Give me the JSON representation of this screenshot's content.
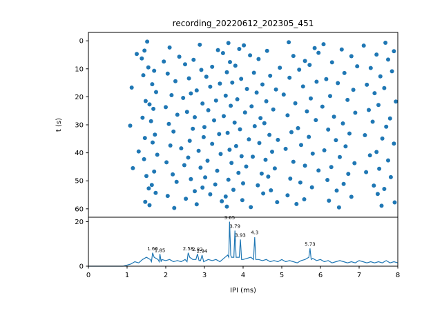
{
  "title": "recording_20220612_202305_451",
  "colors": {
    "accent": "#1f77b4",
    "axis": "#000000",
    "background": "#ffffff"
  },
  "chart_data": [
    {
      "type": "scatter",
      "title": "recording_20220612_202305_451",
      "xlabel": "IPI (ms)",
      "ylabel": "t (s)",
      "xlim": [
        0,
        8
      ],
      "ylim": [
        63,
        -3
      ],
      "ylim_inverted": true,
      "yticks": [
        0,
        10,
        20,
        30,
        40,
        50,
        60
      ],
      "points": [
        [
          1.52,
          0.3
        ],
        [
          2.88,
          1.4
        ],
        [
          3.62,
          0.8
        ],
        [
          4.02,
          1.6
        ],
        [
          5.18,
          0.5
        ],
        [
          6.08,
          1.2
        ],
        [
          7.12,
          1.7
        ],
        [
          7.68,
          0.7
        ],
        [
          1.45,
          3.5
        ],
        [
          2.1,
          2.4
        ],
        [
          3.35,
          3.3
        ],
        [
          3.9,
          2.9
        ],
        [
          4.62,
          3.6
        ],
        [
          5.85,
          2.6
        ],
        [
          6.55,
          3.1
        ],
        [
          7.9,
          3.7
        ],
        [
          1.25,
          4.7
        ],
        [
          2.35,
          5.7
        ],
        [
          3.48,
          4.4
        ],
        [
          4.18,
          5.2
        ],
        [
          5.3,
          5.4
        ],
        [
          5.95,
          4.3
        ],
        [
          6.8,
          5.5
        ],
        [
          7.45,
          4.9
        ],
        [
          1.38,
          6.3
        ],
        [
          1.95,
          7.4
        ],
        [
          2.72,
          6.8
        ],
        [
          3.66,
          7.6
        ],
        [
          4.4,
          6.5
        ],
        [
          5.6,
          7.2
        ],
        [
          6.3,
          7.7
        ],
        [
          7.75,
          6.7
        ],
        [
          1.55,
          9.5
        ],
        [
          2.5,
          8.4
        ],
        [
          3.2,
          9.3
        ],
        [
          3.8,
          8.9
        ],
        [
          4.95,
          9.6
        ],
        [
          5.72,
          8.6
        ],
        [
          6.95,
          9.1
        ],
        [
          7.3,
          9.7
        ],
        [
          1.7,
          10.7
        ],
        [
          2.05,
          11.7
        ],
        [
          2.92,
          10.4
        ],
        [
          3.58,
          11.2
        ],
        [
          4.28,
          11.4
        ],
        [
          5.45,
          10.3
        ],
        [
          6.62,
          11.5
        ],
        [
          7.85,
          10.9
        ],
        [
          1.42,
          12.3
        ],
        [
          2.6,
          13.4
        ],
        [
          3.05,
          12.8
        ],
        [
          3.95,
          13.6
        ],
        [
          4.7,
          12.5
        ],
        [
          5.2,
          13.2
        ],
        [
          6.15,
          13.7
        ],
        [
          7.55,
          12.7
        ],
        [
          1.65,
          15.5
        ],
        [
          2.25,
          14.4
        ],
        [
          3.4,
          15.3
        ],
        [
          3.72,
          14.9
        ],
        [
          4.5,
          15.6
        ],
        [
          5.9,
          14.6
        ],
        [
          6.45,
          15.1
        ],
        [
          7.2,
          15.7
        ],
        [
          1.12,
          16.7
        ],
        [
          2.8,
          17.7
        ],
        [
          3.15,
          16.4
        ],
        [
          4.1,
          17.2
        ],
        [
          4.85,
          17.4
        ],
        [
          5.55,
          16.3
        ],
        [
          6.85,
          17.5
        ],
        [
          7.65,
          16.9
        ],
        [
          1.75,
          18.3
        ],
        [
          2.15,
          19.4
        ],
        [
          2.65,
          18.8
        ],
        [
          3.55,
          19.6
        ],
        [
          4.35,
          18.5
        ],
        [
          5.05,
          19.2
        ],
        [
          6.25,
          19.7
        ],
        [
          7.4,
          18.7
        ],
        [
          1.48,
          21.5
        ],
        [
          2.45,
          20.4
        ],
        [
          3.3,
          21.3
        ],
        [
          3.85,
          20.9
        ],
        [
          4.6,
          21.6
        ],
        [
          5.75,
          20.6
        ],
        [
          6.7,
          21.1
        ],
        [
          7.95,
          21.7
        ],
        [
          1.58,
          22.7
        ],
        [
          2.0,
          23.7
        ],
        [
          2.95,
          22.4
        ],
        [
          3.68,
          23.2
        ],
        [
          4.22,
          23.4
        ],
        [
          5.35,
          22.3
        ],
        [
          6.05,
          23.5
        ],
        [
          7.5,
          22.9
        ],
        [
          1.68,
          24.3
        ],
        [
          2.55,
          25.4
        ],
        [
          3.1,
          24.8
        ],
        [
          4.05,
          25.6
        ],
        [
          4.78,
          24.5
        ],
        [
          5.65,
          25.2
        ],
        [
          6.9,
          25.7
        ],
        [
          7.25,
          24.7
        ],
        [
          1.4,
          27.5
        ],
        [
          2.3,
          26.4
        ],
        [
          2.75,
          27.3
        ],
        [
          3.5,
          26.9
        ],
        [
          4.45,
          27.6
        ],
        [
          5.15,
          26.6
        ],
        [
          6.35,
          27.1
        ],
        [
          7.8,
          27.7
        ],
        [
          1.62,
          28.7
        ],
        [
          2.08,
          29.7
        ],
        [
          3.25,
          28.4
        ],
        [
          3.78,
          29.2
        ],
        [
          4.55,
          29.4
        ],
        [
          5.88,
          28.3
        ],
        [
          6.58,
          29.5
        ],
        [
          7.35,
          28.9
        ],
        [
          1.08,
          30.3
        ],
        [
          2.7,
          31.4
        ],
        [
          3.0,
          30.8
        ],
        [
          3.92,
          31.6
        ],
        [
          4.3,
          30.5
        ],
        [
          5.42,
          31.2
        ],
        [
          6.2,
          31.7
        ],
        [
          7.7,
          30.7
        ],
        [
          1.72,
          33.5
        ],
        [
          2.2,
          32.4
        ],
        [
          3.38,
          33.3
        ],
        [
          3.6,
          32.9
        ],
        [
          4.68,
          33.6
        ],
        [
          5.25,
          32.6
        ],
        [
          6.75,
          33.1
        ],
        [
          7.15,
          33.7
        ],
        [
          1.46,
          34.7
        ],
        [
          2.62,
          35.7
        ],
        [
          2.98,
          34.4
        ],
        [
          4.15,
          35.2
        ],
        [
          4.9,
          35.4
        ],
        [
          5.7,
          34.3
        ],
        [
          6.4,
          35.5
        ],
        [
          7.6,
          34.9
        ],
        [
          1.66,
          36.3
        ],
        [
          2.12,
          37.4
        ],
        [
          3.2,
          36.8
        ],
        [
          3.82,
          37.6
        ],
        [
          4.42,
          36.5
        ],
        [
          5.5,
          37.2
        ],
        [
          6.65,
          37.7
        ],
        [
          7.9,
          36.7
        ],
        [
          1.3,
          39.5
        ],
        [
          2.4,
          38.4
        ],
        [
          2.85,
          39.3
        ],
        [
          3.65,
          38.9
        ],
        [
          4.75,
          39.6
        ],
        [
          5.1,
          38.6
        ],
        [
          6.1,
          39.1
        ],
        [
          7.45,
          39.7
        ],
        [
          1.78,
          40.7
        ],
        [
          2.58,
          41.7
        ],
        [
          3.42,
          40.4
        ],
        [
          3.96,
          41.2
        ],
        [
          4.25,
          41.4
        ],
        [
          5.8,
          40.3
        ],
        [
          6.5,
          41.5
        ],
        [
          7.28,
          40.9
        ],
        [
          1.44,
          42.3
        ],
        [
          2.02,
          43.4
        ],
        [
          3.08,
          42.8
        ],
        [
          3.7,
          43.6
        ],
        [
          4.58,
          42.5
        ],
        [
          5.3,
          43.2
        ],
        [
          6.88,
          43.7
        ],
        [
          7.75,
          42.7
        ],
        [
          1.15,
          45.5
        ],
        [
          2.48,
          44.4
        ],
        [
          2.9,
          45.3
        ],
        [
          4.08,
          44.9
        ],
        [
          4.82,
          45.6
        ],
        [
          5.6,
          44.6
        ],
        [
          6.28,
          45.1
        ],
        [
          7.52,
          45.7
        ],
        [
          1.7,
          46.7
        ],
        [
          2.18,
          47.7
        ],
        [
          3.33,
          46.4
        ],
        [
          3.88,
          47.2
        ],
        [
          4.48,
          47.4
        ],
        [
          5.95,
          46.3
        ],
        [
          6.72,
          47.5
        ],
        [
          7.18,
          46.9
        ],
        [
          1.5,
          48.3
        ],
        [
          2.65,
          49.4
        ],
        [
          3.02,
          48.8
        ],
        [
          3.62,
          49.6
        ],
        [
          4.65,
          48.5
        ],
        [
          5.22,
          49.2
        ],
        [
          6.18,
          49.7
        ],
        [
          7.82,
          48.7
        ],
        [
          1.64,
          51.5
        ],
        [
          2.28,
          50.4
        ],
        [
          3.28,
          51.3
        ],
        [
          4.0,
          50.9
        ],
        [
          4.38,
          51.6
        ],
        [
          5.48,
          50.6
        ],
        [
          6.6,
          51.1
        ],
        [
          7.38,
          51.7
        ],
        [
          1.56,
          52.7
        ],
        [
          2.75,
          53.7
        ],
        [
          2.95,
          52.4
        ],
        [
          3.75,
          53.2
        ],
        [
          4.72,
          53.4
        ],
        [
          5.78,
          52.3
        ],
        [
          6.42,
          53.5
        ],
        [
          7.65,
          52.9
        ],
        [
          1.74,
          54.3
        ],
        [
          2.05,
          55.4
        ],
        [
          3.15,
          54.8
        ],
        [
          3.55,
          55.6
        ],
        [
          4.52,
          54.5
        ],
        [
          5.15,
          55.2
        ],
        [
          6.8,
          55.7
        ],
        [
          7.48,
          54.7
        ],
        [
          1.47,
          57.5
        ],
        [
          2.52,
          56.4
        ],
        [
          3.45,
          57.3
        ],
        [
          3.98,
          56.9
        ],
        [
          4.88,
          57.6
        ],
        [
          5.58,
          56.6
        ],
        [
          6.22,
          57.1
        ],
        [
          7.92,
          57.7
        ],
        [
          1.58,
          58.7
        ],
        [
          2.22,
          59.7
        ],
        [
          2.8,
          58.4
        ],
        [
          3.58,
          59.2
        ],
        [
          4.2,
          59.4
        ],
        [
          5.38,
          58.3
        ],
        [
          6.48,
          59.5
        ],
        [
          7.58,
          58.9
        ]
      ]
    },
    {
      "type": "line",
      "xlabel": "IPI (ms)",
      "ylabel": "",
      "xlim": [
        0,
        8
      ],
      "ylim": [
        0,
        22
      ],
      "yticks": [
        0,
        20
      ],
      "xticks": [
        0,
        1,
        2,
        3,
        4,
        5,
        6,
        7,
        8
      ],
      "x": [
        0,
        0.9,
        1.0,
        1.1,
        1.2,
        1.3,
        1.4,
        1.5,
        1.6,
        1.63,
        1.66,
        1.7,
        1.8,
        1.83,
        1.85,
        1.88,
        1.9,
        2.0,
        2.1,
        2.2,
        2.3,
        2.4,
        2.5,
        2.55,
        2.58,
        2.62,
        2.7,
        2.78,
        2.82,
        2.86,
        2.9,
        2.94,
        2.98,
        3.1,
        3.2,
        3.3,
        3.4,
        3.5,
        3.6,
        3.63,
        3.65,
        3.68,
        3.7,
        3.76,
        3.79,
        3.82,
        3.9,
        3.93,
        3.96,
        4.0,
        4.1,
        4.2,
        4.27,
        4.3,
        4.33,
        4.4,
        4.5,
        4.6,
        4.7,
        4.8,
        4.9,
        5.0,
        5.1,
        5.2,
        5.3,
        5.4,
        5.5,
        5.6,
        5.7,
        5.73,
        5.76,
        5.8,
        5.9,
        6.0,
        6.1,
        6.2,
        6.3,
        6.4,
        6.5,
        6.6,
        6.7,
        6.8,
        6.9,
        7.0,
        7.1,
        7.2,
        7.3,
        7.4,
        7.5,
        7.6,
        7.7,
        7.8,
        7.9,
        8.0
      ],
      "y": [
        0,
        0,
        0.5,
        1,
        2,
        1.5,
        3,
        4,
        3,
        2,
        6,
        4,
        3,
        2,
        5.5,
        2,
        3,
        2.5,
        3,
        2,
        2.5,
        2,
        3,
        2,
        6,
        4,
        3,
        3,
        5.5,
        2.5,
        2.5,
        5,
        2,
        3,
        2.5,
        3,
        2,
        3.5,
        5,
        4,
        20,
        5,
        4,
        4,
        16,
        4,
        4,
        12,
        3,
        3,
        3.5,
        4,
        3,
        13,
        3,
        3,
        2.5,
        3,
        2,
        2.5,
        2,
        3,
        2,
        2.5,
        2,
        1.5,
        2.5,
        3,
        4,
        8,
        3,
        3.5,
        2.5,
        3,
        2,
        2.5,
        1.5,
        2,
        2.5,
        2,
        1.5,
        2,
        1.5,
        2.5,
        2,
        1.5,
        2,
        1.5,
        2,
        1.5,
        2.5,
        1.5,
        2,
        1.5
      ],
      "annotations": [
        {
          "x": 1.66,
          "y": 7.2,
          "label": "1.66"
        },
        {
          "x": 1.85,
          "y": 6.4,
          "label": "1.85"
        },
        {
          "x": 2.58,
          "y": 7.2,
          "label": "2.58"
        },
        {
          "x": 2.82,
          "y": 6.8,
          "label": "2.82"
        },
        {
          "x": 2.94,
          "y": 6.0,
          "label": "2.94"
        },
        {
          "x": 3.65,
          "y": 21.0,
          "label": "3.65"
        },
        {
          "x": 3.79,
          "y": 17.2,
          "label": "3.79"
        },
        {
          "x": 3.93,
          "y": 13.2,
          "label": "3.93"
        },
        {
          "x": 4.3,
          "y": 14.4,
          "label": "4.3"
        },
        {
          "x": 5.73,
          "y": 9.2,
          "label": "5.73"
        }
      ]
    }
  ]
}
